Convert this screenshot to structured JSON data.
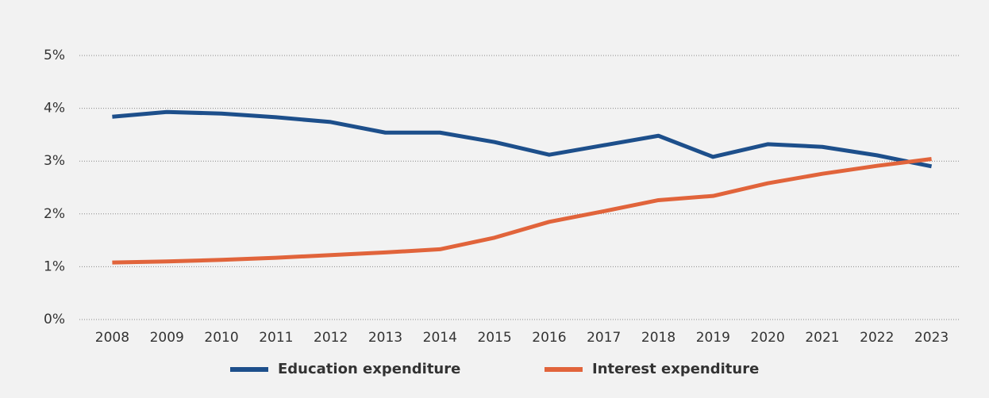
{
  "chart_data": {
    "type": "line",
    "categories": [
      "2008",
      "2009",
      "2010",
      "2011",
      "2012",
      "2013",
      "2014",
      "2015",
      "2016",
      "2017",
      "2018",
      "2019",
      "2020",
      "2021",
      "2022",
      "2023"
    ],
    "series": [
      {
        "name": "Education expenditure",
        "color": "#1d4f8b",
        "values": [
          3.84,
          3.93,
          3.9,
          3.83,
          3.74,
          3.54,
          3.54,
          3.36,
          3.12,
          3.3,
          3.48,
          3.08,
          3.32,
          3.27,
          3.11,
          2.9
        ]
      },
      {
        "name": "Interest expenditure",
        "color": "#e1643b",
        "values": [
          1.08,
          1.1,
          1.13,
          1.17,
          1.22,
          1.27,
          1.33,
          1.55,
          1.85,
          2.05,
          2.26,
          2.34,
          2.58,
          2.76,
          2.91,
          3.04
        ]
      }
    ],
    "ylim": [
      0,
      5
    ],
    "yticks": [
      {
        "value": 0,
        "label": "0%"
      },
      {
        "value": 1,
        "label": "1%"
      },
      {
        "value": 2,
        "label": "2%"
      },
      {
        "value": 3,
        "label": "3%"
      },
      {
        "value": 4,
        "label": "4%"
      },
      {
        "value": 5,
        "label": "5%"
      }
    ],
    "grid": true,
    "legend": "bottom"
  }
}
